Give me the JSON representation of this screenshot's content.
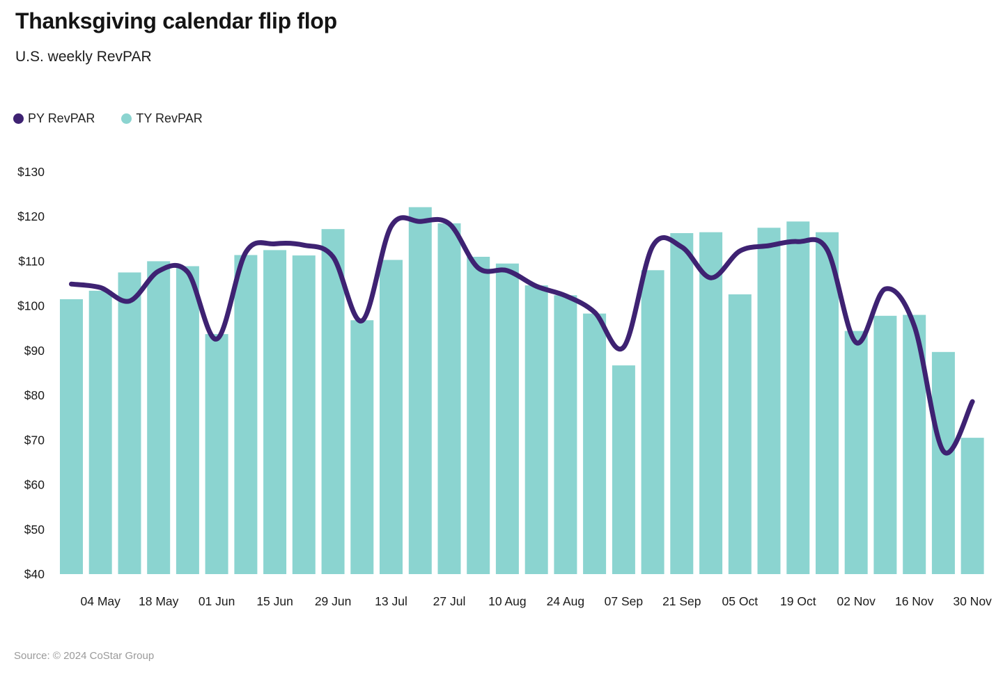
{
  "header": {
    "title": "Thanksgiving calendar flip flop",
    "subtitle": "U.S. weekly RevPAR"
  },
  "footer": {
    "source": "Source: © 2024 CoStar Group"
  },
  "colors": {
    "py_line": "#3E2272",
    "ty_bar": "#8BD4D0",
    "title_text": "#141414",
    "axis_text": "#1a1a1a",
    "source_text": "#9a9a9a"
  },
  "chart_data": {
    "type": "combo",
    "title": "Thanksgiving calendar flip flop",
    "subtitle": "U.S. weekly RevPAR",
    "ylabel": "",
    "xlabel": "",
    "ylim": [
      40,
      130
    ],
    "y_ticks": [
      40,
      50,
      60,
      70,
      80,
      90,
      100,
      110,
      120,
      130
    ],
    "y_tick_prefix": "$",
    "grid": "off",
    "legend_position": "top-left",
    "x_tick_labels": [
      "04 May",
      "18 May",
      "01 Jun",
      "15 Jun",
      "29 Jun",
      "13 Jul",
      "27 Jul",
      "10 Aug",
      "24 Aug",
      "07 Sep",
      "21 Sep",
      "05 Oct",
      "19 Oct",
      "02 Nov",
      "16 Nov",
      "30 Nov"
    ],
    "x_tick_start_index": 1,
    "x_tick_every": 2,
    "n_points": 32,
    "series": [
      {
        "name": "PY RevPAR",
        "type": "line",
        "color": "#3E2272",
        "values": [
          104.9,
          104.1,
          101.1,
          107.8,
          107.6,
          92.6,
          112.0,
          113.9,
          113.6,
          111.0,
          96.7,
          117.8,
          118.9,
          118.4,
          108.5,
          107.9,
          104.4,
          102.3,
          98.6,
          90.8,
          113.4,
          113.2,
          106.3,
          112.3,
          113.5,
          114.4,
          112.6,
          91.8,
          103.8,
          95.5,
          67.5,
          78.6
        ]
      },
      {
        "name": "TY RevPAR",
        "type": "bar",
        "color": "#8BD4D0",
        "values": [
          101.5,
          103.4,
          107.5,
          110.0,
          108.9,
          93.7,
          111.4,
          112.5,
          111.3,
          117.2,
          96.8,
          110.3,
          122.1,
          118.5,
          111.0,
          109.5,
          104.6,
          102.4,
          98.3,
          86.7,
          108.0,
          116.3,
          116.5,
          102.6,
          117.5,
          118.9,
          116.5,
          94.4,
          97.8,
          98.0,
          89.7,
          70.5
        ]
      }
    ]
  }
}
